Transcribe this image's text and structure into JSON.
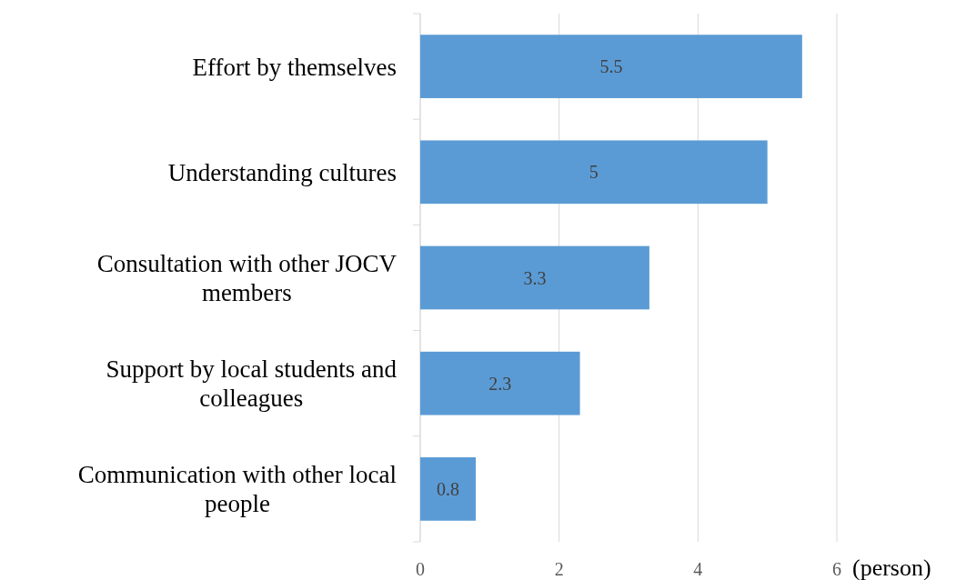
{
  "chart_data": {
    "type": "bar",
    "orientation": "horizontal",
    "xlabel": "(person)",
    "categories": [
      "Effort by themselves",
      "Understanding cultures",
      "Consultation with other JOCV members",
      "Support by local students and colleagues",
      "Communication with other local people"
    ],
    "values": [
      5.5,
      5,
      3.3,
      2.3,
      0.8
    ],
    "color": "#5b9bd5",
    "xlim": [
      0,
      6
    ],
    "xticks": [
      0,
      2,
      4,
      6
    ],
    "grid": "x",
    "data_labels": true
  }
}
